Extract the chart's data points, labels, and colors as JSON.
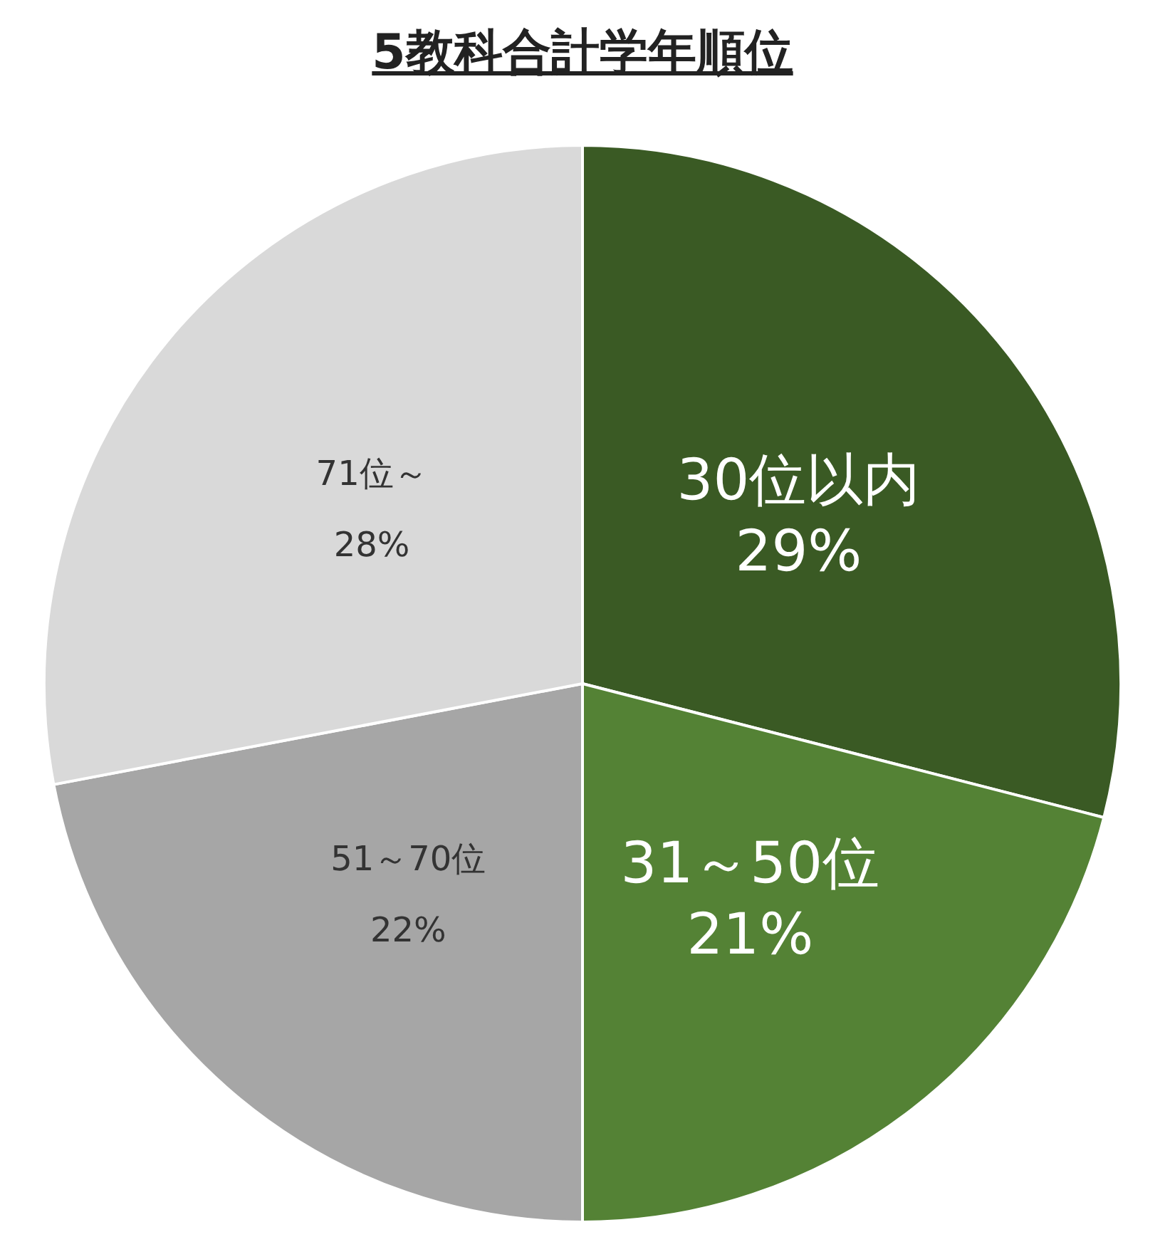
{
  "chart_data": {
    "type": "pie",
    "title": "5教科合計学年順位",
    "categories": [
      "30位以内",
      "31～50位",
      "51～70位",
      "71位～"
    ],
    "values": [
      29,
      21,
      22,
      28
    ],
    "value_labels": [
      "29%",
      "21%",
      "22%",
      "28%"
    ],
    "colors": [
      "#3a5a24",
      "#548235",
      "#a6a6a6",
      "#d9d9d9"
    ],
    "legend": false
  }
}
